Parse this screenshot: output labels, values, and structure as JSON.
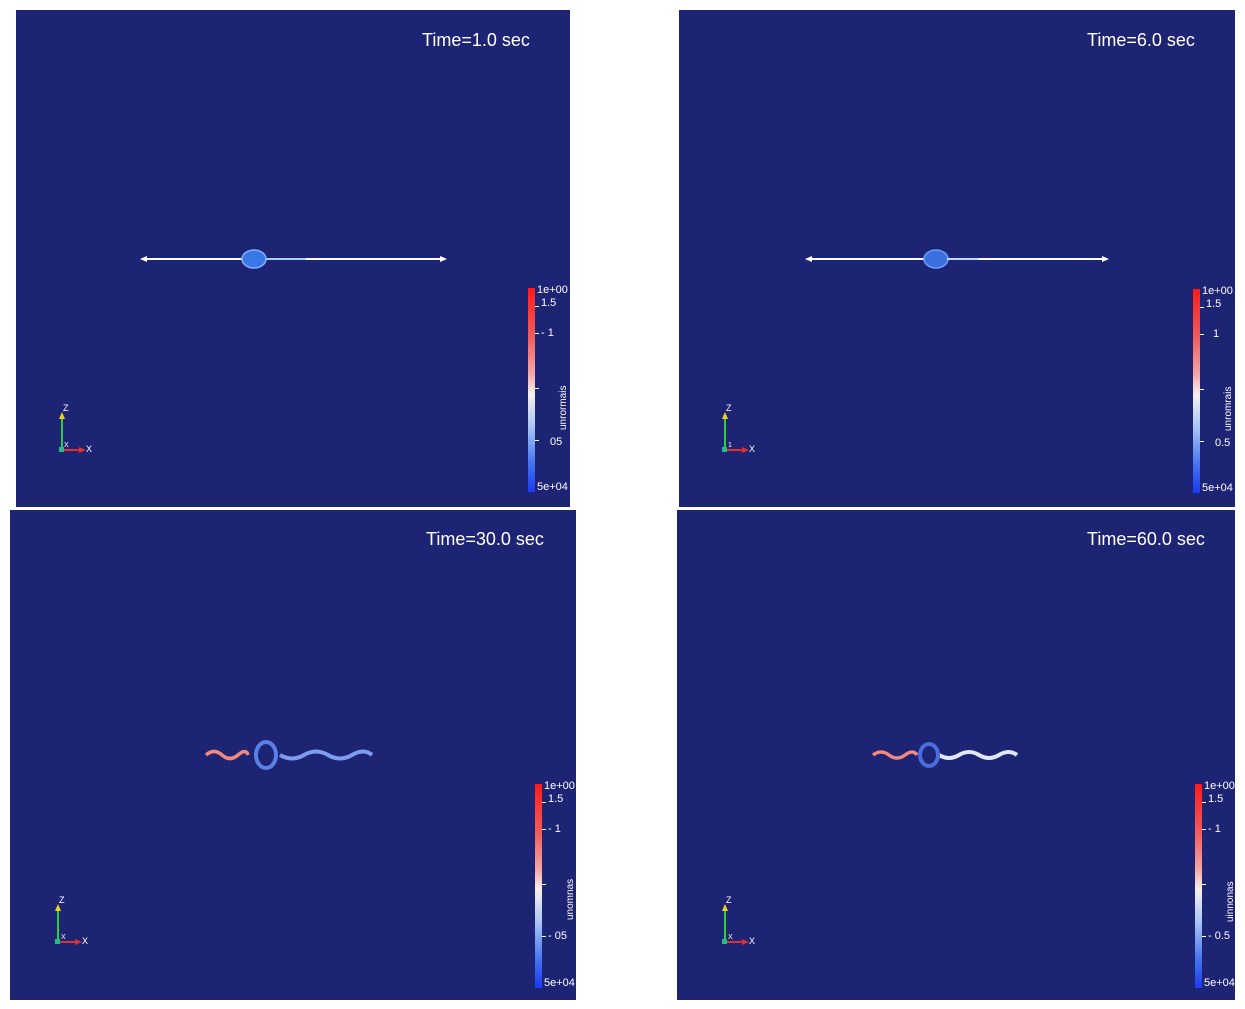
{
  "panels": [
    {
      "time_label": "Time=1.0 sec",
      "colorbar": {
        "max_label": "1e+00",
        "t1": "1.5",
        "t2": "- 1",
        "t3": "05",
        "min_label": "5e+04",
        "title": "unrormais"
      },
      "axes": {
        "z": "Z",
        "x": "X",
        "origin": "X"
      }
    },
    {
      "time_label": "Time=6.0 sec",
      "colorbar": {
        "max_label": "1e+00",
        "t1": "1.5",
        "t2": "1",
        "t3": "0.5",
        "min_label": "5e+04",
        "title": "unromrais"
      },
      "axes": {
        "z": "Z",
        "x": "X",
        "origin": "1"
      }
    },
    {
      "time_label": "Time=30.0 sec",
      "colorbar": {
        "max_label": "1e+00",
        "t1": "1.5",
        "t2": "- 1",
        "t3": "- 05",
        "min_label": "5e+04",
        "title": "unomnas"
      },
      "axes": {
        "z": "Z",
        "x": "X",
        "origin": "X"
      }
    },
    {
      "time_label": "Time=60.0 sec",
      "colorbar": {
        "max_label": "1e+00",
        "t1": "1.5",
        "t2": "- 1",
        "t3": "- 0.5",
        "min_label": "5e+04",
        "title": "uinnonas"
      },
      "axes": {
        "z": "Z",
        "x": "X",
        "origin": "X"
      }
    }
  ],
  "colors": {
    "background": "#1e2474",
    "high": "#ff1a1a",
    "mid": "#f6f0f0",
    "low": "#1a3af0"
  }
}
